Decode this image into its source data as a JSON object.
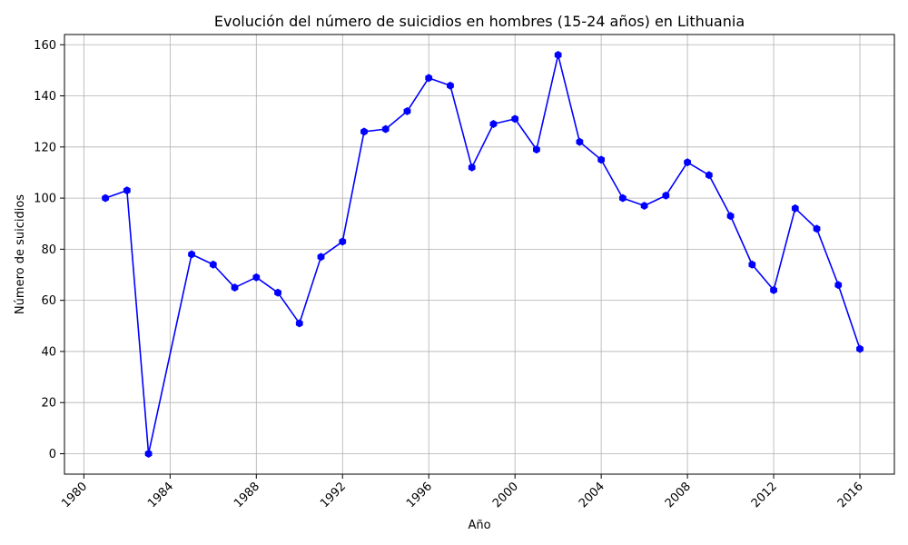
{
  "chart_data": {
    "type": "line",
    "title": "Evolución del número de suicidios en hombres (15-24 años) en Lithuania",
    "xlabel": "Año",
    "ylabel": "Número de suicidios",
    "xlim": [
      1979.1,
      1977.6
    ],
    "ylim": [
      -8,
      164
    ],
    "x_ticks": [
      1980,
      1984,
      1988,
      1992,
      1996,
      2000,
      2004,
      2008,
      2012,
      2016
    ],
    "y_ticks": [
      0,
      20,
      40,
      60,
      80,
      100,
      120,
      140,
      160
    ],
    "grid": true,
    "series": [
      {
        "color": "#0000ff",
        "marker": "hexagon",
        "x": [
          1981,
          1982,
          1983,
          1985,
          1986,
          1987,
          1988,
          1989,
          1990,
          1991,
          1992,
          1993,
          1994,
          1995,
          1996,
          1997,
          1998,
          1999,
          2000,
          2001,
          2002,
          2003,
          2004,
          2005,
          2006,
          2007,
          2008,
          2009,
          2010,
          2011,
          2012,
          2013,
          2014,
          2015,
          2016
        ],
        "y": [
          100,
          103,
          0,
          78,
          74,
          65,
          69,
          63,
          51,
          77,
          83,
          126,
          127,
          134,
          147,
          144,
          112,
          129,
          131,
          119,
          156,
          122,
          115,
          100,
          97,
          101,
          114,
          109,
          93,
          74,
          64,
          96,
          88,
          66,
          41
        ]
      }
    ]
  }
}
